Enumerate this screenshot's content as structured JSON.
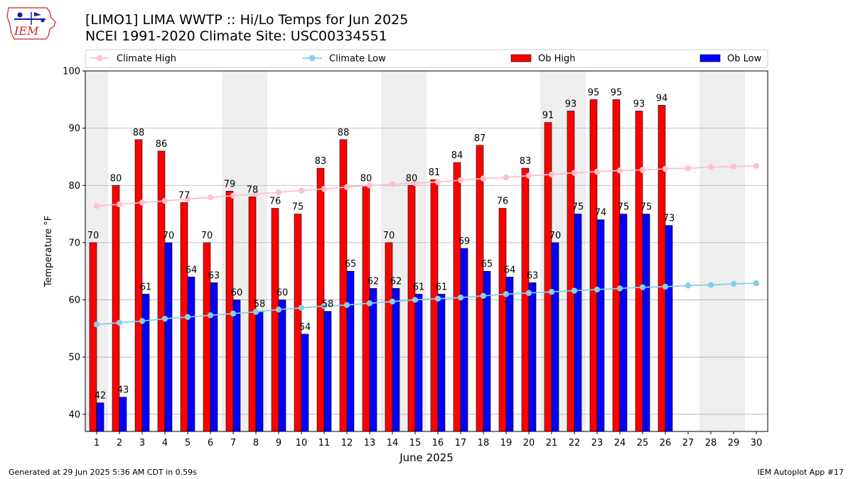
{
  "header": {
    "title": "[LIMO1] LIMA WWTP :: Hi/Lo Temps for Jun 2025",
    "subtitle": "NCEI 1991-2020 Climate Site: USC00334551",
    "logo_text": "IEM"
  },
  "footer": {
    "generated": "Generated at 29 Jun 2025 5:36 AM CDT in 0.59s",
    "app": "IEM Autoplot App #17"
  },
  "colors": {
    "ob_high": "#ff0000",
    "ob_low": "#0000ff",
    "climate_high": "#ffc0cb",
    "climate_low": "#87ceeb",
    "weekend_band": "#eeeeee",
    "grid": "#b0b0b0"
  },
  "chart_data": {
    "type": "bar",
    "xlabel": "June 2025",
    "ylabel": "Temperature °F",
    "ylim": [
      37,
      100
    ],
    "yticks": [
      40,
      50,
      60,
      70,
      80,
      90,
      100
    ],
    "grid": "horizontal",
    "legend_position": "top",
    "categories": [
      "1",
      "2",
      "3",
      "4",
      "5",
      "6",
      "7",
      "8",
      "9",
      "10",
      "11",
      "12",
      "13",
      "14",
      "15",
      "16",
      "17",
      "18",
      "19",
      "20",
      "21",
      "22",
      "23",
      "24",
      "25",
      "26",
      "27",
      "28",
      "29",
      "30"
    ],
    "weekend_days": [
      1,
      7,
      8,
      14,
      15,
      21,
      22,
      28,
      29
    ],
    "series": [
      {
        "name": "Climate High",
        "kind": "line",
        "values": [
          76.4,
          76.7,
          77.0,
          77.3,
          77.6,
          77.9,
          78.2,
          78.5,
          78.8,
          79.1,
          79.4,
          79.7,
          80.0,
          80.2,
          80.4,
          80.6,
          80.9,
          81.2,
          81.4,
          81.7,
          81.9,
          82.2,
          82.4,
          82.6,
          82.7,
          82.9,
          83.0,
          83.2,
          83.3,
          83.4
        ]
      },
      {
        "name": "Climate Low",
        "kind": "line",
        "values": [
          55.7,
          56.0,
          56.3,
          56.7,
          57.0,
          57.3,
          57.6,
          57.9,
          58.3,
          58.6,
          58.9,
          59.1,
          59.4,
          59.7,
          60.0,
          60.2,
          60.4,
          60.7,
          61.0,
          61.2,
          61.4,
          61.6,
          61.8,
          62.0,
          62.2,
          62.3,
          62.5,
          62.6,
          62.8,
          62.9
        ]
      },
      {
        "name": "Ob High",
        "kind": "bar",
        "values": [
          70,
          80,
          88,
          86,
          77,
          70,
          79,
          78,
          76,
          75,
          83,
          88,
          80,
          70,
          80,
          81,
          84,
          87,
          76,
          83,
          91,
          93,
          95,
          95,
          93,
          94,
          null,
          null,
          null,
          null
        ]
      },
      {
        "name": "Ob Low",
        "kind": "bar",
        "values": [
          42,
          43,
          61,
          70,
          64,
          63,
          60,
          58,
          60,
          54,
          58,
          65,
          62,
          62,
          61,
          61,
          69,
          65,
          64,
          63,
          70,
          75,
          74,
          75,
          75,
          73,
          null,
          null,
          null,
          null
        ]
      }
    ]
  }
}
